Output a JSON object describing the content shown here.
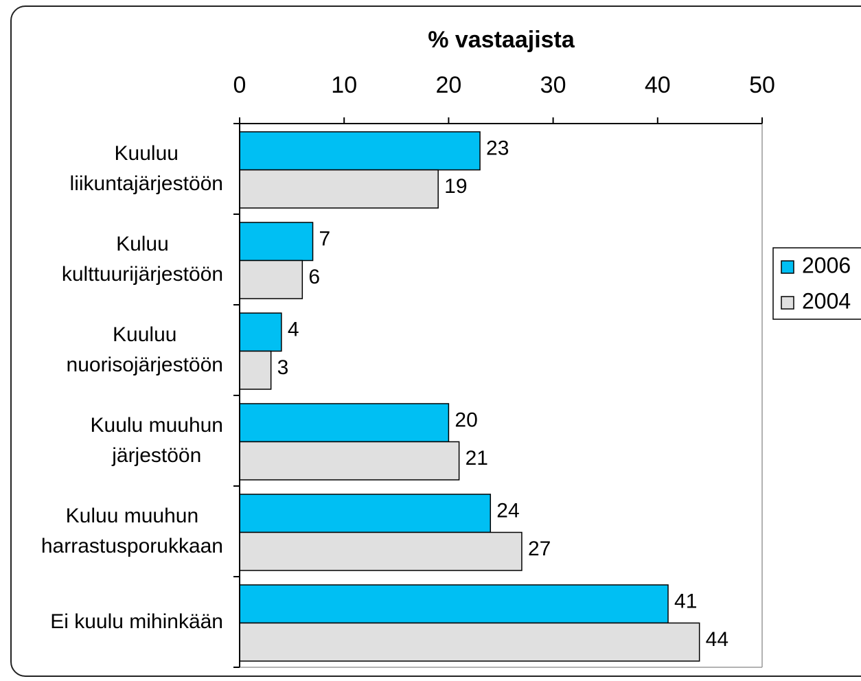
{
  "chart_data": {
    "type": "hbar",
    "x_label": "% vastaajista",
    "categories": [
      "Kuuluu\nliikuntajärjestöön",
      "Kuluu\nkulttuurijärjestöön",
      "Kuuluu\nnuorisojärjestöön",
      "Kuulu muuhun\njärjestöön",
      "Kuluu muuhun\nharrastusporukkaan",
      "Ei kuulu mihinkään"
    ],
    "series": [
      {
        "name": "2006",
        "color": "#00bff3",
        "values": [
          23,
          7,
          4,
          20,
          24,
          41
        ]
      },
      {
        "name": "2004",
        "color": "#e0e0e0",
        "values": [
          19,
          6,
          3,
          21,
          27,
          44
        ]
      }
    ],
    "xlim": [
      0,
      50
    ],
    "xticks": [
      0,
      10,
      20,
      30,
      40,
      50
    ],
    "legend": "right"
  }
}
